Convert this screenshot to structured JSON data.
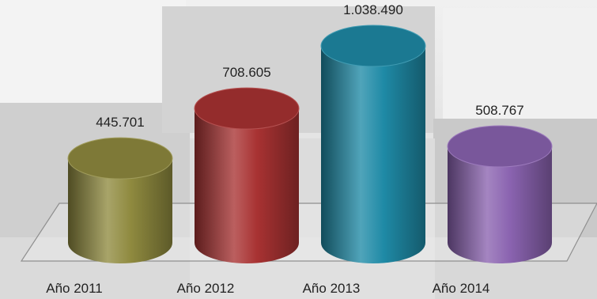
{
  "chart_data": {
    "type": "bar",
    "style": "3d-cylinder",
    "categories": [
      "Año 2011",
      "Año 2012",
      "Año 2013",
      "Año 2014"
    ],
    "values": [
      445701,
      708605,
      1038490,
      508767
    ],
    "value_labels": [
      "445.701",
      "708.605",
      "1.038.490",
      "508.767"
    ],
    "colors": [
      "#8f8a3f",
      "#a83232",
      "#1f8aa6",
      "#8a63b0"
    ],
    "ylim": [
      0,
      1038490
    ],
    "title": "",
    "xlabel": "",
    "ylabel": "",
    "grid": false,
    "legend": "none"
  }
}
